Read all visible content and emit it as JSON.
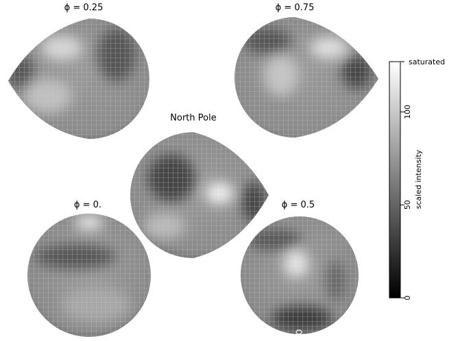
{
  "panels": [
    {
      "title": "ϕ = 0.25"
    },
    {
      "title": "ϕ = 0.75"
    },
    {
      "title": "North Pole"
    },
    {
      "title": "ϕ = 0."
    },
    {
      "title": "ϕ = 0.5"
    }
  ],
  "colorbar": {
    "label": "scaled intensity",
    "lim": [
      0,
      127
    ],
    "ticks": [
      0,
      50,
      100,
      {
        "value": 127,
        "label": "saturated"
      }
    ]
  }
}
